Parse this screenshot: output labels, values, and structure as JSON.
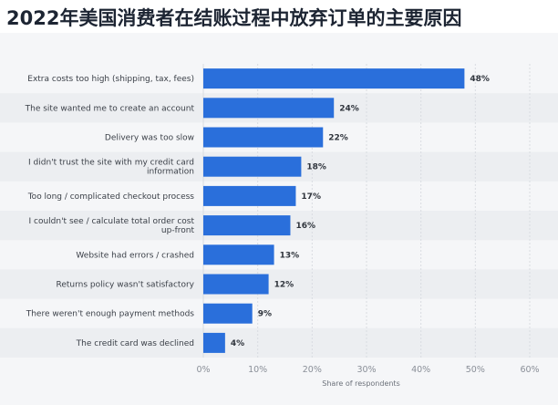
{
  "header": {
    "title": "2022年美国消费者在结账过程中放弃订单的主要原因"
  },
  "colors": {
    "bar": "#2a6fdb",
    "grid": "#d9dce1",
    "panel": "#f5f6f8",
    "stripe": "#eceef1"
  },
  "chart_data": {
    "type": "bar",
    "orientation": "horizontal",
    "title": "2022年美国消费者在结账过程中放弃订单的主要原因",
    "xlabel": "Share of respondents",
    "ylabel": "",
    "xlim": [
      0,
      60
    ],
    "xticks": [
      0,
      10,
      20,
      30,
      40,
      50,
      60
    ],
    "tick_suffix": "%",
    "grid": true,
    "categories": [
      [
        "Extra costs too high (shipping, tax, fees)"
      ],
      [
        "The site wanted me to create an account"
      ],
      [
        "Delivery was too slow"
      ],
      [
        "I didn't trust the site with my credit card",
        "information"
      ],
      [
        "Too long / complicated checkout process"
      ],
      [
        "I couldn't see / calculate total order cost",
        "up-front"
      ],
      [
        "Website had errors / crashed"
      ],
      [
        "Returns policy wasn't satisfactory"
      ],
      [
        "There weren't enough payment methods"
      ],
      [
        "The credit card was declined"
      ]
    ],
    "values": [
      48,
      24,
      22,
      18,
      17,
      16,
      13,
      12,
      9,
      4
    ],
    "value_labels": [
      "48%",
      "24%",
      "22%",
      "18%",
      "17%",
      "16%",
      "13%",
      "12%",
      "9%",
      "4%"
    ]
  }
}
